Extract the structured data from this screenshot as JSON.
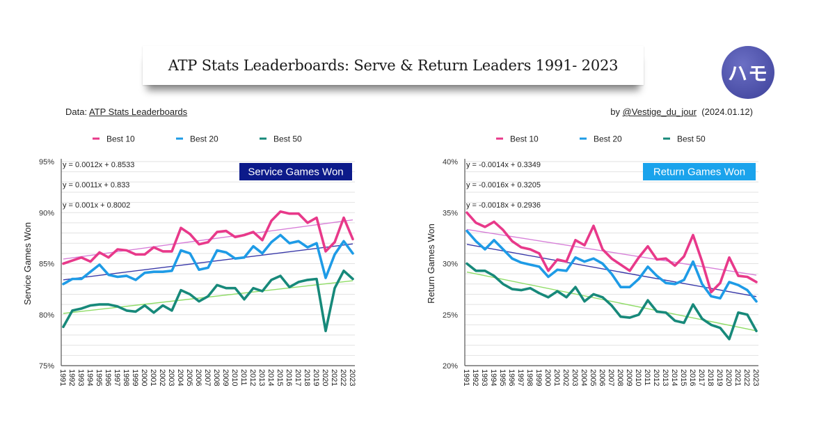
{
  "header": {
    "title": "ATP Stats Leaderboards: Serve & Return Leaders 1991- 2023",
    "logo_text": "ハモ",
    "source_prefix": "Data: ",
    "source_link": "ATP Stats Leaderboards",
    "credit_prefix": "by ",
    "credit_link": "@Vestige_du_jour",
    "credit_date": "(2024.01.12)"
  },
  "colors": {
    "best10": "#e8398a",
    "best20": "#1e9be6",
    "best50": "#17897a",
    "trend10": "#d77fd8",
    "trend20": "#3838a8",
    "trend50": "#8fdc66",
    "service_badge_bg": "#0c1a8a",
    "return_badge_bg": "#1aa3ec"
  },
  "chart_data": [
    {
      "type": "line",
      "title": "Service Games Won",
      "xlabel": "",
      "ylabel": "Service Games Won",
      "ylim": [
        0.75,
        0.95
      ],
      "yticks": [
        0.75,
        0.8,
        0.85,
        0.9,
        0.95
      ],
      "ytick_labels": [
        "75%",
        "80%",
        "85%",
        "90%",
        "95%"
      ],
      "grid": true,
      "legend": "top",
      "x": [
        1991,
        1992,
        1993,
        1994,
        1995,
        1996,
        1997,
        1998,
        1999,
        2000,
        2001,
        2002,
        2003,
        2004,
        2005,
        2006,
        2007,
        2008,
        2009,
        2010,
        2011,
        2012,
        2013,
        2014,
        2015,
        2016,
        2017,
        2018,
        2019,
        2020,
        2021,
        2022,
        2023
      ],
      "series": [
        {
          "name": "Best 10",
          "color_key": "best10",
          "values": [
            0.85,
            0.853,
            0.856,
            0.852,
            0.861,
            0.856,
            0.864,
            0.863,
            0.859,
            0.859,
            0.866,
            0.862,
            0.862,
            0.885,
            0.879,
            0.869,
            0.871,
            0.881,
            0.882,
            0.876,
            0.878,
            0.881,
            0.873,
            0.892,
            0.901,
            0.899,
            0.899,
            0.89,
            0.895,
            0.862,
            0.871,
            0.895,
            0.874
          ],
          "trend": {
            "slope": 0.0012,
            "intercept": 0.8533,
            "label": "y = 0.0012x + 0.8533",
            "color_key": "trend10"
          }
        },
        {
          "name": "Best 20",
          "color_key": "best20",
          "values": [
            0.83,
            0.835,
            0.835,
            0.842,
            0.849,
            0.839,
            0.837,
            0.838,
            0.834,
            0.841,
            0.842,
            0.842,
            0.843,
            0.863,
            0.86,
            0.844,
            0.846,
            0.863,
            0.861,
            0.855,
            0.856,
            0.867,
            0.86,
            0.871,
            0.878,
            0.87,
            0.872,
            0.866,
            0.87,
            0.836,
            0.859,
            0.872,
            0.86
          ],
          "trend": {
            "slope": 0.0011,
            "intercept": 0.833,
            "label": "y = 0.0011x + 0.833",
            "color_key": "trend20"
          }
        },
        {
          "name": "Best 50",
          "color_key": "best50",
          "values": [
            0.788,
            0.804,
            0.806,
            0.809,
            0.81,
            0.81,
            0.808,
            0.804,
            0.803,
            0.809,
            0.802,
            0.809,
            0.804,
            0.824,
            0.82,
            0.813,
            0.818,
            0.829,
            0.826,
            0.826,
            0.815,
            0.826,
            0.823,
            0.834,
            0.838,
            0.827,
            0.832,
            0.834,
            0.835,
            0.784,
            0.826,
            0.843,
            0.835
          ],
          "trend": {
            "slope": 0.001,
            "intercept": 0.8002,
            "label": "y = 0.001x + 0.8002",
            "color_key": "trend50"
          }
        }
      ]
    },
    {
      "type": "line",
      "title": "Return Games Won",
      "xlabel": "",
      "ylabel": "Return Games Won",
      "ylim": [
        0.2,
        0.4
      ],
      "yticks": [
        0.2,
        0.25,
        0.3,
        0.35,
        0.4
      ],
      "ytick_labels": [
        "20%",
        "25%",
        "30%",
        "35%",
        "40%"
      ],
      "grid": true,
      "legend": "top",
      "x": [
        1991,
        1992,
        1993,
        1994,
        1995,
        1996,
        1997,
        1998,
        1999,
        2000,
        2001,
        2002,
        2003,
        2004,
        2005,
        2006,
        2007,
        2008,
        2009,
        2010,
        2011,
        2012,
        2013,
        2014,
        2015,
        2016,
        2017,
        2018,
        2019,
        2020,
        2021,
        2022,
        2023
      ],
      "series": [
        {
          "name": "Best 10",
          "color_key": "best10",
          "values": [
            0.35,
            0.34,
            0.336,
            0.341,
            0.333,
            0.322,
            0.316,
            0.314,
            0.31,
            0.293,
            0.304,
            0.302,
            0.323,
            0.318,
            0.337,
            0.314,
            0.305,
            0.299,
            0.293,
            0.306,
            0.317,
            0.304,
            0.305,
            0.298,
            0.307,
            0.328,
            0.302,
            0.272,
            0.281,
            0.306,
            0.288,
            0.287,
            0.282
          ],
          "trend": {
            "slope": -0.0014,
            "intercept": 0.3349,
            "label": "y = -0.0014x + 0.3349",
            "color_key": "trend10"
          }
        },
        {
          "name": "Best 20",
          "color_key": "best20",
          "values": [
            0.332,
            0.322,
            0.314,
            0.323,
            0.314,
            0.305,
            0.301,
            0.299,
            0.297,
            0.287,
            0.294,
            0.293,
            0.306,
            0.302,
            0.305,
            0.3,
            0.29,
            0.277,
            0.277,
            0.285,
            0.297,
            0.288,
            0.281,
            0.28,
            0.284,
            0.302,
            0.28,
            0.268,
            0.266,
            0.282,
            0.279,
            0.274,
            0.263
          ],
          "trend": {
            "slope": -0.0016,
            "intercept": 0.3205,
            "label": "y = -0.0016x + 0.3205",
            "color_key": "trend20"
          }
        },
        {
          "name": "Best 50",
          "color_key": "best50",
          "values": [
            0.3,
            0.293,
            0.293,
            0.288,
            0.28,
            0.275,
            0.274,
            0.276,
            0.271,
            0.267,
            0.273,
            0.267,
            0.277,
            0.263,
            0.27,
            0.267,
            0.259,
            0.248,
            0.247,
            0.25,
            0.264,
            0.253,
            0.252,
            0.244,
            0.242,
            0.26,
            0.246,
            0.24,
            0.237,
            0.226,
            0.252,
            0.25,
            0.234
          ],
          "trend": {
            "slope": -0.0018,
            "intercept": 0.2936,
            "label": "y = -0.0018x + 0.2936",
            "color_key": "trend50"
          }
        }
      ]
    }
  ]
}
